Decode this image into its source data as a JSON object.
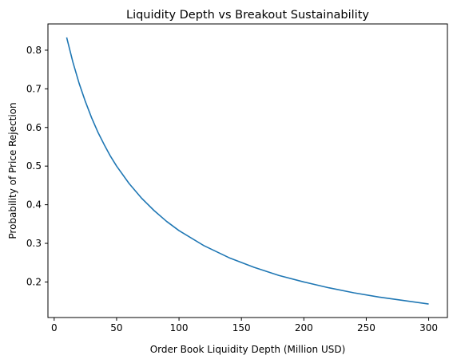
{
  "chart_data": {
    "type": "line",
    "title": "Liquidity Depth vs Breakout Sustainability",
    "xlabel": "Order Book Liquidity Depth (Million USD)",
    "ylabel": "Probability of Price Rejection",
    "xlim": [
      -5,
      315
    ],
    "ylim": [
      0.108,
      0.868
    ],
    "xticks": [
      0,
      50,
      100,
      150,
      200,
      250,
      300
    ],
    "yticks": [
      0.2,
      0.3,
      0.4,
      0.5,
      0.6,
      0.7,
      0.8
    ],
    "xtick_labels": [
      "0",
      "50",
      "100",
      "150",
      "200",
      "250",
      "300"
    ],
    "ytick_labels": [
      "0.2",
      "0.3",
      "0.4",
      "0.5",
      "0.6",
      "0.7",
      "0.8"
    ],
    "grid": false,
    "legend": "none",
    "series": [
      {
        "color": "#1f77b4",
        "x": [
          10,
          15,
          20,
          25,
          30,
          35,
          40,
          45,
          50,
          60,
          70,
          80,
          90,
          100,
          120,
          140,
          160,
          180,
          200,
          220,
          240,
          260,
          280,
          300
        ],
        "y": [
          0.833,
          0.769,
          0.714,
          0.667,
          0.625,
          0.588,
          0.556,
          0.526,
          0.5,
          0.455,
          0.417,
          0.385,
          0.357,
          0.333,
          0.294,
          0.263,
          0.238,
          0.217,
          0.2,
          0.185,
          0.172,
          0.161,
          0.152,
          0.143
        ]
      }
    ]
  }
}
